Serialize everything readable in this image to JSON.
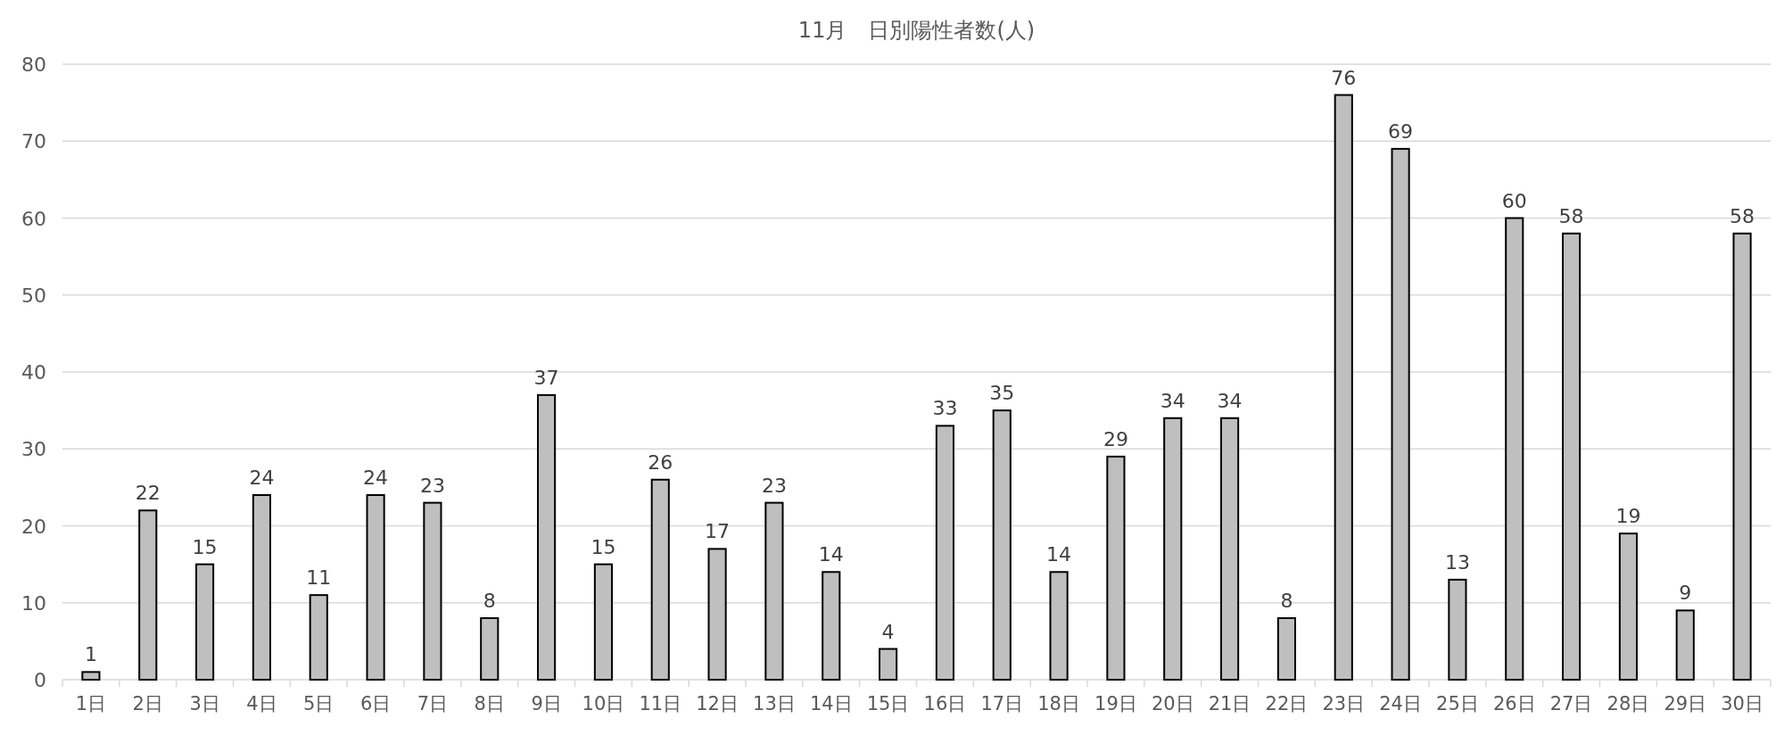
{
  "chart_data": {
    "type": "bar",
    "title": "11月　日別陽性者数(人)",
    "categories": [
      "1日",
      "2日",
      "3日",
      "4日",
      "5日",
      "6日",
      "7日",
      "8日",
      "9日",
      "10日",
      "11日",
      "12日",
      "13日",
      "14日",
      "15日",
      "16日",
      "17日",
      "18日",
      "19日",
      "20日",
      "21日",
      "22日",
      "23日",
      "24日",
      "25日",
      "26日",
      "27日",
      "28日",
      "29日",
      "30日"
    ],
    "values": [
      1,
      22,
      15,
      24,
      11,
      24,
      23,
      8,
      37,
      15,
      26,
      17,
      23,
      14,
      4,
      33,
      35,
      14,
      29,
      34,
      34,
      8,
      76,
      69,
      13,
      60,
      58,
      19,
      9,
      58
    ],
    "color": "#bfbfbf",
    "ylim": [
      0,
      80
    ],
    "yticks": [
      0,
      10,
      20,
      30,
      40,
      50,
      60,
      70,
      80
    ],
    "grid": "y",
    "data_labels": true
  }
}
